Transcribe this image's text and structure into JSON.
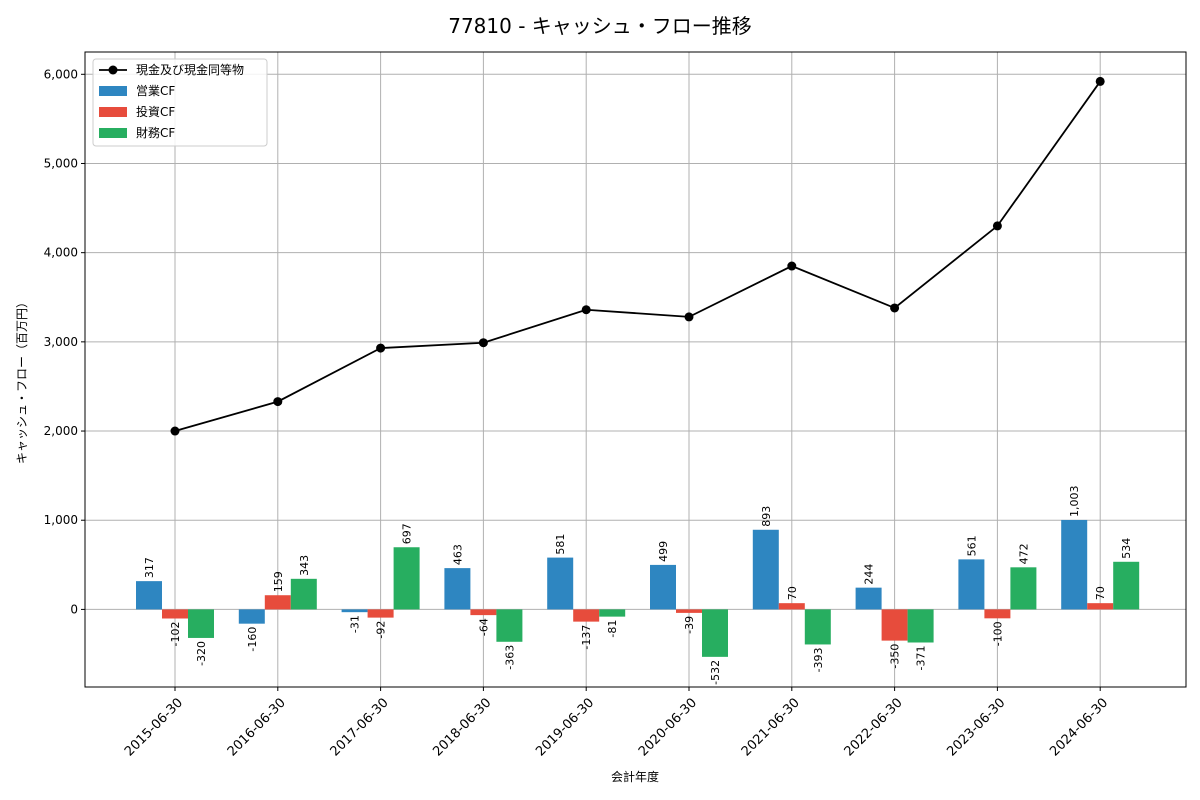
{
  "chart_data": {
    "type": "bar",
    "title": "77810 - キャッシュ・フロー推移",
    "xlabel": "会計年度",
    "ylabel": "キャッシュ・フロー（百万円）",
    "categories": [
      "2015-06-30",
      "2016-06-30",
      "2017-06-30",
      "2018-06-30",
      "2019-06-30",
      "2020-06-30",
      "2021-06-30",
      "2022-06-30",
      "2023-06-30",
      "2024-06-30"
    ],
    "ylim": [
      -870,
      6250
    ],
    "yticks": [
      0,
      1000,
      2000,
      3000,
      4000,
      5000,
      6000
    ],
    "ytick_labels": [
      "0",
      "1,000",
      "2,000",
      "3,000",
      "4,000",
      "5,000",
      "6,000"
    ],
    "grid": true,
    "legend_position": "top-left",
    "series": [
      {
        "name": "営業CF",
        "kind": "bar",
        "color": "#2e86c1",
        "values": [
          317,
          -160,
          -31,
          463,
          581,
          499,
          893,
          244,
          561,
          1003
        ],
        "labels": [
          "317",
          "-160",
          "-31",
          "463",
          "581",
          "499",
          "893",
          "244",
          "561",
          "1,003"
        ]
      },
      {
        "name": "投資CF",
        "kind": "bar",
        "color": "#e74c3c",
        "values": [
          -102,
          159,
          -92,
          -64,
          -137,
          -39,
          70,
          -350,
          -100,
          70
        ],
        "labels": [
          "-102",
          "159",
          "-92",
          "-64",
          "-137",
          "-39",
          "70",
          "-350",
          "-100",
          "70"
        ]
      },
      {
        "name": "財務CF",
        "kind": "bar",
        "color": "#27ae60",
        "values": [
          -320,
          343,
          697,
          -363,
          -81,
          -532,
          -393,
          -371,
          472,
          534
        ],
        "labels": [
          "-320",
          "343",
          "697",
          "-363",
          "-81",
          "-532",
          "-393",
          "-371",
          "472",
          "534"
        ]
      },
      {
        "name": "現金及び現金同等物",
        "kind": "line",
        "color": "#000000",
        "values": [
          2000,
          2330,
          2930,
          2990,
          3360,
          3280,
          3850,
          3380,
          4300,
          5920
        ]
      }
    ]
  }
}
